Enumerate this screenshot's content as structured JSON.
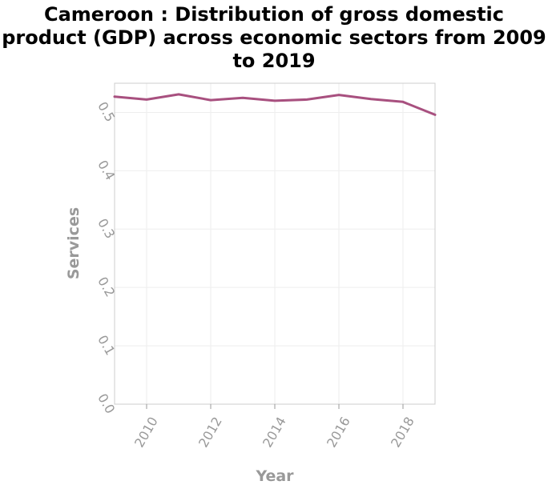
{
  "chart_data": {
    "type": "line",
    "title": "Cameroon : Distribution of gross domestic product (GDP) across economic sectors from 2009 to 2019",
    "xlabel": "Year",
    "ylabel": "Services",
    "xlim": [
      2009,
      2019
    ],
    "ylim": [
      0,
      0.55
    ],
    "x_ticks": [
      2010,
      2012,
      2014,
      2016,
      2018
    ],
    "y_ticks": [
      0.0,
      0.1,
      0.2,
      0.3,
      0.4,
      0.5
    ],
    "x_tick_labels": [
      "2010",
      "2012",
      "2014",
      "2016",
      "2018"
    ],
    "y_tick_labels": [
      "0.0",
      "0.1",
      "0.2",
      "0.3",
      "0.4",
      "0.5"
    ],
    "grid": true,
    "series": [
      {
        "color": "#a8507f",
        "x": [
          2009,
          2010,
          2011,
          2012,
          2013,
          2014,
          2015,
          2016,
          2017,
          2018,
          2019
        ],
        "y": [
          0.527,
          0.522,
          0.531,
          0.521,
          0.525,
          0.52,
          0.522,
          0.53,
          0.523,
          0.518,
          0.496
        ]
      }
    ]
  }
}
